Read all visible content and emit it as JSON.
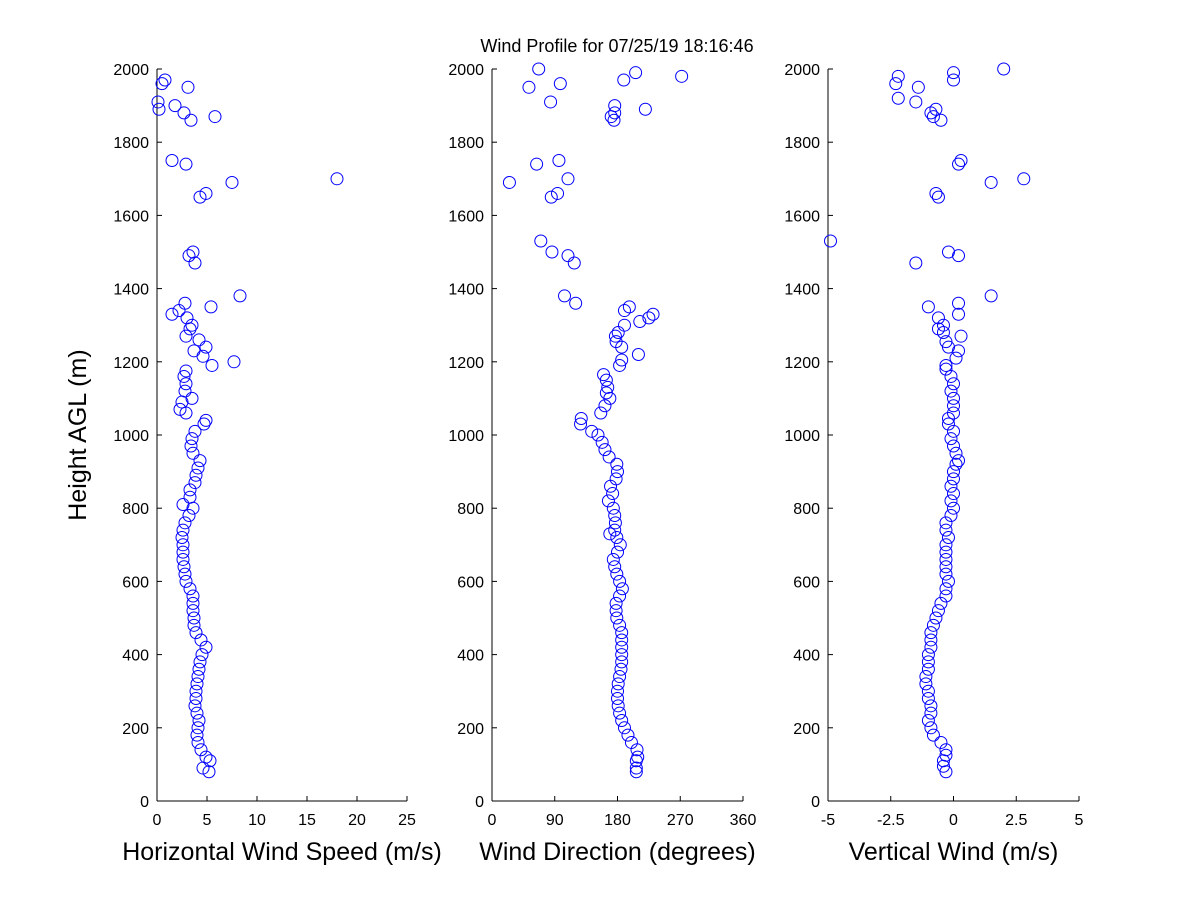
{
  "title": "Wind Profile for  07/25/19 18:16:46",
  "colors": {
    "marker": "#0000ff",
    "axis": "#000000",
    "background": "#ffffff"
  },
  "chart_data": [
    {
      "type": "scatter",
      "xlabel": "Horizontal Wind Speed (m/s)",
      "ylabel": "Height AGL (m)",
      "xlim": [
        0,
        25
      ],
      "ylim": [
        0,
        2000
      ],
      "xticks": [
        "0",
        "5",
        "10",
        "15",
        "20",
        "25"
      ],
      "yticks": [
        "0",
        "200",
        "400",
        "600",
        "800",
        "1000",
        "1200",
        "1400",
        "1600",
        "1800",
        "2000"
      ],
      "grid": false,
      "marker": "open-circle",
      "points": [
        [
          5.2,
          80
        ],
        [
          4.6,
          90
        ],
        [
          5.3,
          110
        ],
        [
          4.9,
          120
        ],
        [
          4.4,
          140
        ],
        [
          4.1,
          160
        ],
        [
          4.0,
          180
        ],
        [
          4.1,
          200
        ],
        [
          4.2,
          220
        ],
        [
          4.0,
          240
        ],
        [
          3.8,
          260
        ],
        [
          3.9,
          280
        ],
        [
          3.9,
          300
        ],
        [
          4.0,
          320
        ],
        [
          4.1,
          340
        ],
        [
          4.2,
          360
        ],
        [
          4.3,
          380
        ],
        [
          4.5,
          400
        ],
        [
          4.9,
          420
        ],
        [
          4.4,
          440
        ],
        [
          3.9,
          460
        ],
        [
          3.7,
          480
        ],
        [
          3.7,
          500
        ],
        [
          3.6,
          520
        ],
        [
          3.6,
          540
        ],
        [
          3.6,
          560
        ],
        [
          3.3,
          580
        ],
        [
          2.9,
          600
        ],
        [
          2.8,
          620
        ],
        [
          2.7,
          640
        ],
        [
          2.6,
          660
        ],
        [
          2.6,
          680
        ],
        [
          2.6,
          700
        ],
        [
          2.5,
          720
        ],
        [
          2.6,
          740
        ],
        [
          2.8,
          760
        ],
        [
          3.2,
          780
        ],
        [
          3.6,
          800
        ],
        [
          2.6,
          810
        ],
        [
          3.3,
          830
        ],
        [
          3.3,
          850
        ],
        [
          3.8,
          870
        ],
        [
          3.9,
          890
        ],
        [
          4.1,
          910
        ],
        [
          4.3,
          930
        ],
        [
          3.6,
          950
        ],
        [
          3.4,
          970
        ],
        [
          3.5,
          990
        ],
        [
          3.8,
          1010
        ],
        [
          4.7,
          1030
        ],
        [
          4.9,
          1040
        ],
        [
          2.9,
          1060
        ],
        [
          2.3,
          1070
        ],
        [
          2.5,
          1090
        ],
        [
          3.5,
          1100
        ],
        [
          2.8,
          1120
        ],
        [
          2.9,
          1140
        ],
        [
          2.7,
          1160
        ],
        [
          2.9,
          1175
        ],
        [
          5.5,
          1190
        ],
        [
          7.7,
          1200
        ],
        [
          4.6,
          1215
        ],
        [
          3.7,
          1230
        ],
        [
          4.9,
          1240
        ],
        [
          4.2,
          1260
        ],
        [
          2.9,
          1270
        ],
        [
          3.3,
          1290
        ],
        [
          3.5,
          1300
        ],
        [
          3.0,
          1320
        ],
        [
          1.5,
          1330
        ],
        [
          2.2,
          1340
        ],
        [
          5.4,
          1350
        ],
        [
          2.8,
          1360
        ],
        [
          8.3,
          1380
        ],
        [
          3.8,
          1470
        ],
        [
          3.2,
          1490
        ],
        [
          3.6,
          1500
        ],
        [
          4.3,
          1650
        ],
        [
          4.9,
          1660
        ],
        [
          7.5,
          1690
        ],
        [
          18.0,
          1700
        ],
        [
          2.9,
          1740
        ],
        [
          1.5,
          1750
        ],
        [
          3.4,
          1860
        ],
        [
          5.8,
          1870
        ],
        [
          2.7,
          1880
        ],
        [
          1.8,
          1900
        ],
        [
          0.2,
          1890
        ],
        [
          0.1,
          1910
        ],
        [
          3.1,
          1950
        ],
        [
          0.5,
          1960
        ],
        [
          0.8,
          1970
        ]
      ]
    },
    {
      "type": "scatter",
      "xlabel": "Wind Direction (degrees)",
      "ylabel": "",
      "xlim": [
        0,
        360
      ],
      "ylim": [
        0,
        2000
      ],
      "xticks": [
        "0",
        "90",
        "180",
        "270",
        "360"
      ],
      "yticks": [
        "0",
        "200",
        "400",
        "600",
        "800",
        "1000",
        "1200",
        "1400",
        "1600",
        "1800",
        "2000"
      ],
      "grid": false,
      "marker": "open-circle",
      "points": [
        [
          207,
          80
        ],
        [
          207,
          90
        ],
        [
          207,
          110
        ],
        [
          209,
          120
        ],
        [
          208,
          140
        ],
        [
          200,
          160
        ],
        [
          195,
          180
        ],
        [
          190,
          200
        ],
        [
          186,
          220
        ],
        [
          183,
          240
        ],
        [
          181,
          260
        ],
        [
          180,
          280
        ],
        [
          180,
          300
        ],
        [
          181,
          320
        ],
        [
          183,
          340
        ],
        [
          185,
          360
        ],
        [
          186,
          380
        ],
        [
          186,
          400
        ],
        [
          186,
          420
        ],
        [
          186,
          440
        ],
        [
          186,
          460
        ],
        [
          183,
          480
        ],
        [
          179,
          500
        ],
        [
          178,
          520
        ],
        [
          178,
          540
        ],
        [
          183,
          560
        ],
        [
          187,
          580
        ],
        [
          183,
          600
        ],
        [
          179,
          620
        ],
        [
          176,
          640
        ],
        [
          174,
          660
        ],
        [
          180,
          680
        ],
        [
          184,
          700
        ],
        [
          179,
          720
        ],
        [
          169,
          730
        ],
        [
          176,
          740
        ],
        [
          177,
          760
        ],
        [
          176,
          780
        ],
        [
          174,
          800
        ],
        [
          167,
          820
        ],
        [
          173,
          840
        ],
        [
          170,
          860
        ],
        [
          178,
          880
        ],
        [
          180,
          900
        ],
        [
          179,
          920
        ],
        [
          168,
          940
        ],
        [
          162,
          960
        ],
        [
          158,
          980
        ],
        [
          152,
          1000
        ],
        [
          143,
          1010
        ],
        [
          127,
          1030
        ],
        [
          128,
          1045
        ],
        [
          156,
          1060
        ],
        [
          162,
          1080
        ],
        [
          169,
          1100
        ],
        [
          164,
          1115
        ],
        [
          166,
          1130
        ],
        [
          164,
          1150
        ],
        [
          160,
          1165
        ],
        [
          183,
          1190
        ],
        [
          186,
          1205
        ],
        [
          210,
          1220
        ],
        [
          186,
          1240
        ],
        [
          178,
          1255
        ],
        [
          177,
          1270
        ],
        [
          181,
          1280
        ],
        [
          190,
          1300
        ],
        [
          212,
          1310
        ],
        [
          225,
          1320
        ],
        [
          231,
          1330
        ],
        [
          190,
          1340
        ],
        [
          197,
          1350
        ],
        [
          120,
          1360
        ],
        [
          104,
          1380
        ],
        [
          118,
          1470
        ],
        [
          109,
          1490
        ],
        [
          86,
          1500
        ],
        [
          70,
          1530
        ],
        [
          85,
          1650
        ],
        [
          94,
          1660
        ],
        [
          25,
          1690
        ],
        [
          109,
          1700
        ],
        [
          64,
          1740
        ],
        [
          96,
          1750
        ],
        [
          175,
          1860
        ],
        [
          171,
          1870
        ],
        [
          176,
          1880
        ],
        [
          220,
          1890
        ],
        [
          176,
          1900
        ],
        [
          84,
          1910
        ],
        [
          53,
          1950
        ],
        [
          98,
          1960
        ],
        [
          189,
          1970
        ],
        [
          272,
          1980
        ],
        [
          206,
          1990
        ],
        [
          67,
          2000
        ]
      ]
    },
    {
      "type": "scatter",
      "xlabel": "Vertical Wind (m/s)",
      "ylabel": "",
      "xlim": [
        -5,
        5
      ],
      "ylim": [
        0,
        2000
      ],
      "xticks": [
        "-5",
        "-2.5",
        "0",
        "2.5",
        "5"
      ],
      "yticks": [
        "0",
        "200",
        "400",
        "600",
        "800",
        "1000",
        "1200",
        "1400",
        "1600",
        "1800",
        "2000"
      ],
      "grid": false,
      "marker": "open-circle",
      "points": [
        [
          -0.3,
          80
        ],
        [
          -0.4,
          95
        ],
        [
          -0.4,
          110
        ],
        [
          -0.3,
          125
        ],
        [
          -0.3,
          140
        ],
        [
          -0.5,
          160
        ],
        [
          -0.8,
          180
        ],
        [
          -0.9,
          200
        ],
        [
          -1.0,
          220
        ],
        [
          -0.9,
          240
        ],
        [
          -0.9,
          260
        ],
        [
          -1.0,
          280
        ],
        [
          -1.0,
          300
        ],
        [
          -1.1,
          320
        ],
        [
          -1.1,
          340
        ],
        [
          -1.0,
          360
        ],
        [
          -1.0,
          380
        ],
        [
          -1.0,
          400
        ],
        [
          -0.9,
          420
        ],
        [
          -0.9,
          440
        ],
        [
          -0.9,
          460
        ],
        [
          -0.8,
          480
        ],
        [
          -0.7,
          500
        ],
        [
          -0.6,
          520
        ],
        [
          -0.5,
          540
        ],
        [
          -0.3,
          560
        ],
        [
          -0.3,
          580
        ],
        [
          -0.2,
          600
        ],
        [
          -0.3,
          620
        ],
        [
          -0.3,
          640
        ],
        [
          -0.3,
          660
        ],
        [
          -0.3,
          680
        ],
        [
          -0.3,
          700
        ],
        [
          -0.2,
          720
        ],
        [
          -0.3,
          740
        ],
        [
          -0.3,
          760
        ],
        [
          -0.1,
          780
        ],
        [
          0.0,
          800
        ],
        [
          -0.1,
          820
        ],
        [
          0.0,
          840
        ],
        [
          -0.1,
          860
        ],
        [
          0.0,
          880
        ],
        [
          0.0,
          900
        ],
        [
          0.1,
          920
        ],
        [
          0.2,
          930
        ],
        [
          0.1,
          950
        ],
        [
          0.0,
          970
        ],
        [
          -0.1,
          990
        ],
        [
          0.0,
          1010
        ],
        [
          -0.2,
          1030
        ],
        [
          -0.2,
          1045
        ],
        [
          0.0,
          1060
        ],
        [
          0.0,
          1080
        ],
        [
          0.0,
          1100
        ],
        [
          -0.1,
          1120
        ],
        [
          0.0,
          1140
        ],
        [
          -0.1,
          1160
        ],
        [
          -0.3,
          1180
        ],
        [
          -0.3,
          1190
        ],
        [
          0.1,
          1210
        ],
        [
          0.2,
          1230
        ],
        [
          -0.2,
          1240
        ],
        [
          -0.3,
          1255
        ],
        [
          0.3,
          1270
        ],
        [
          -0.4,
          1280
        ],
        [
          -0.6,
          1290
        ],
        [
          -0.4,
          1300
        ],
        [
          -0.6,
          1320
        ],
        [
          0.2,
          1330
        ],
        [
          -1.0,
          1350
        ],
        [
          0.2,
          1360
        ],
        [
          1.5,
          1380
        ],
        [
          -1.5,
          1470
        ],
        [
          0.2,
          1490
        ],
        [
          -0.2,
          1500
        ],
        [
          -4.9,
          1530
        ],
        [
          -0.6,
          1650
        ],
        [
          -0.7,
          1660
        ],
        [
          1.5,
          1690
        ],
        [
          2.8,
          1700
        ],
        [
          0.2,
          1740
        ],
        [
          0.3,
          1750
        ],
        [
          -0.5,
          1860
        ],
        [
          -0.8,
          1870
        ],
        [
          -0.9,
          1880
        ],
        [
          -0.7,
          1890
        ],
        [
          -1.5,
          1910
        ],
        [
          -2.2,
          1920
        ],
        [
          -1.4,
          1950
        ],
        [
          -2.3,
          1960
        ],
        [
          0.0,
          1970
        ],
        [
          -2.2,
          1980
        ],
        [
          0.0,
          1990
        ],
        [
          2.0,
          2000
        ]
      ]
    }
  ]
}
